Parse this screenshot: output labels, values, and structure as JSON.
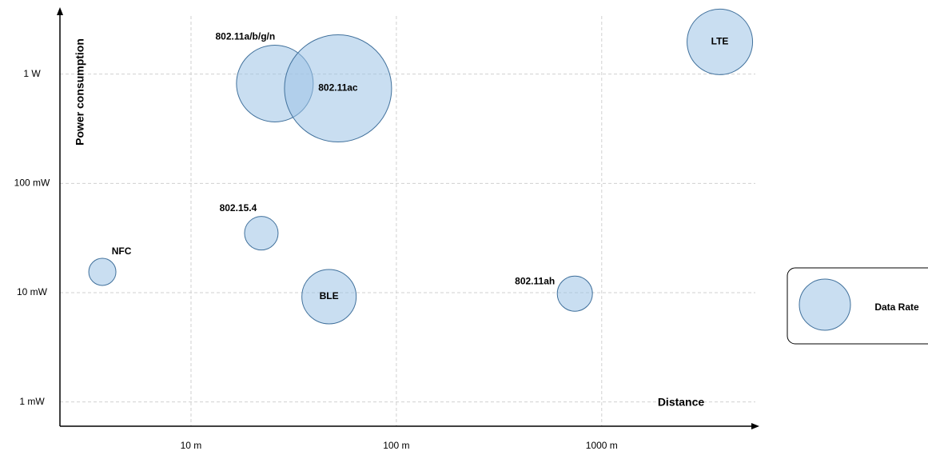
{
  "chart_data": {
    "type": "bubble",
    "x_label": "Distance",
    "y_label": "Power consumption",
    "xscale": "log",
    "yscale": "log",
    "grid": true,
    "legend": "right",
    "xlim": [
      2.3,
      5600
    ],
    "ylim": [
      0.0006,
      3.7
    ],
    "xticks": [
      {
        "value": 10,
        "label": "10 m"
      },
      {
        "value": 100,
        "label": "100 m"
      },
      {
        "value": 1000,
        "label": "1000 m"
      }
    ],
    "yticks": [
      {
        "value": 1,
        "label": "1 W"
      },
      {
        "value": 0.1,
        "label": "100 mW"
      },
      {
        "value": 0.01,
        "label": "10 mW"
      },
      {
        "value": 0.001,
        "label": "1 mW"
      }
    ],
    "series": [
      {
        "name": "Data Rate",
        "color": "#9dc3e6",
        "labels": [
          "NFC",
          "802.15.4",
          "802.11a/b/g/n",
          "802.11ac",
          "BLE",
          "802.11ah",
          "LTE"
        ],
        "x": [
          3.7,
          22,
          25.6,
          52,
          47,
          740,
          3760
        ],
        "values": [
          0.0155,
          0.035,
          0.82,
          0.74,
          0.0092,
          0.0098,
          1.97
        ],
        "sizes": [
          17,
          21,
          48,
          67,
          34,
          22,
          41
        ]
      }
    ]
  }
}
